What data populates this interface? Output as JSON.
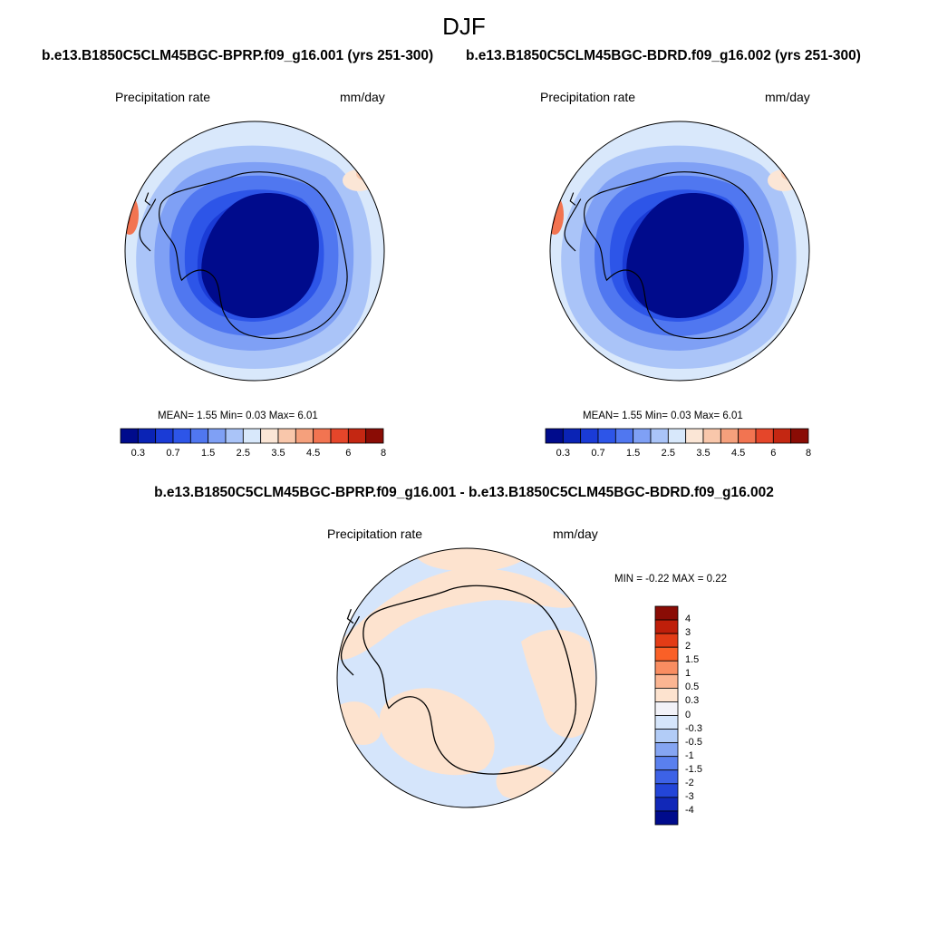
{
  "title": "DJF",
  "panels": [
    {
      "case_title": "b.e13.B1850C5CLM45BGC-BPRP.f09_g16.001 (yrs 251-300)",
      "variable": "Precipitation rate",
      "units": "mm/day",
      "stats": {
        "mean": "1.55",
        "min": "0.03",
        "max": "6.01"
      },
      "stats_text": "MEAN=   1.55   Min=    0.03   Max=    6.01"
    },
    {
      "case_title": "b.e13.B1850C5CLM45BGC-BDRD.f09_g16.002 (yrs 251-300)",
      "variable": "Precipitation rate",
      "units": "mm/day",
      "stats": {
        "mean": "1.55",
        "min": "0.03",
        "max": "6.01"
      },
      "stats_text": "MEAN=   1.55   Min=    0.03   Max=    6.01"
    }
  ],
  "difference": {
    "title": "b.e13.B1850C5CLM45BGC-BPRP.f09_g16.001 - b.e13.B1850C5CLM45BGC-BDRD.f09_g16.002",
    "variable": "Precipitation rate",
    "units": "mm/day",
    "stats": {
      "min": "-0.22",
      "max": "0.22"
    },
    "stats_text": "MIN =  -0.22 MAX =    0.22"
  },
  "colorbar_abs": {
    "colors": [
      "#000b8c",
      "#0a23b5",
      "#1a3bd6",
      "#2d55e8",
      "#5077f0",
      "#7fa0f5",
      "#aac4f8",
      "#d8e8fb",
      "#fbe6d6",
      "#f9c7ab",
      "#f5a07c",
      "#f27451",
      "#e5462a",
      "#c42712",
      "#8a0c05"
    ],
    "labels": [
      "0.3",
      "0.7",
      "1.5",
      "2.5",
      "3.5",
      "4.5",
      "6",
      "8"
    ]
  },
  "colorbar_diff": {
    "colors": [
      "#8a0c05",
      "#bf1f0a",
      "#e33c16",
      "#fa6027",
      "#f98d61",
      "#fbb592",
      "#fde3cf",
      "#f2f2f8",
      "#d5e5fb",
      "#b2ccf7",
      "#85a5f2",
      "#5a80ee",
      "#3d62e6",
      "#2345d8",
      "#1128b8",
      "#000b8c"
    ],
    "labels": [
      "4",
      "3",
      "2",
      "1.5",
      "1",
      "0.5",
      "0.3",
      "0",
      "-0.3",
      "-0.5",
      "-1",
      "-1.5",
      "-2",
      "-3",
      "-4"
    ]
  }
}
